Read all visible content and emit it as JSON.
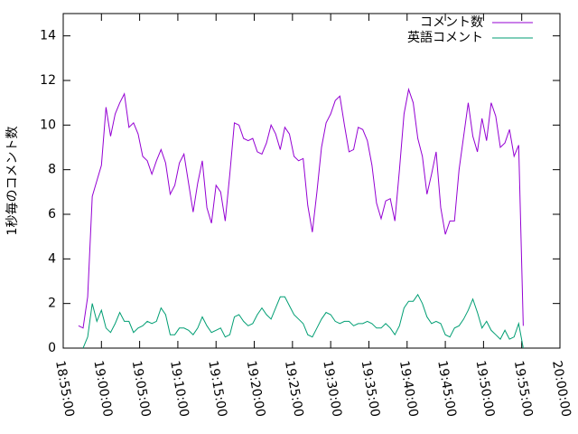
{
  "chart_data": {
    "type": "line",
    "ylabel": "1秒毎のコメント数",
    "xlim": [
      "18:55:00",
      "20:00:00"
    ],
    "xticks": [
      "18:55:00",
      "19:00:00",
      "19:05:00",
      "19:10:00",
      "19:15:00",
      "19:20:00",
      "19:25:00",
      "19:30:00",
      "19:35:00",
      "19:40:00",
      "19:45:00",
      "19:50:00",
      "19:55:00",
      "20:00:00"
    ],
    "ylim": [
      0,
      15
    ],
    "yticks": [
      0,
      2,
      4,
      6,
      8,
      10,
      12,
      14
    ],
    "legend": "top-right",
    "x": [
      "18:57:00",
      "18:57:36",
      "18:58:12",
      "18:58:48",
      "18:59:24",
      "19:00:00",
      "19:00:36",
      "19:01:12",
      "19:01:48",
      "19:02:24",
      "19:03:00",
      "19:03:36",
      "19:04:12",
      "19:04:48",
      "19:05:24",
      "19:06:00",
      "19:06:36",
      "19:07:12",
      "19:07:48",
      "19:08:24",
      "19:09:00",
      "19:09:36",
      "19:10:12",
      "19:10:48",
      "19:11:24",
      "19:12:00",
      "19:12:36",
      "19:13:12",
      "19:13:48",
      "19:14:24",
      "19:15:00",
      "19:15:36",
      "19:16:12",
      "19:16:48",
      "19:17:24",
      "19:18:00",
      "19:18:36",
      "19:19:12",
      "19:19:48",
      "19:20:24",
      "19:21:00",
      "19:21:36",
      "19:22:12",
      "19:22:48",
      "19:23:24",
      "19:24:00",
      "19:24:36",
      "19:25:12",
      "19:25:48",
      "19:26:24",
      "19:27:00",
      "19:27:36",
      "19:28:12",
      "19:28:48",
      "19:29:24",
      "19:30:00",
      "19:30:36",
      "19:31:12",
      "19:31:48",
      "19:32:24",
      "19:33:00",
      "19:33:36",
      "19:34:12",
      "19:34:48",
      "19:35:24",
      "19:36:00",
      "19:36:36",
      "19:37:12",
      "19:37:48",
      "19:38:24",
      "19:39:00",
      "19:39:36",
      "19:40:12",
      "19:40:48",
      "19:41:24",
      "19:42:00",
      "19:42:36",
      "19:43:12",
      "19:43:48",
      "19:44:24",
      "19:45:00",
      "19:45:36",
      "19:46:12",
      "19:46:48",
      "19:47:24",
      "19:48:00",
      "19:48:36",
      "19:49:12",
      "19:49:48",
      "19:50:24",
      "19:51:00",
      "19:51:36",
      "19:52:12",
      "19:52:48",
      "19:53:24",
      "19:54:00",
      "19:54:36",
      "19:55:12"
    ],
    "series": [
      {
        "name": "コメント数",
        "color": "#9400d3",
        "values": [
          1.0,
          0.9,
          2.3,
          6.8,
          7.5,
          8.2,
          10.8,
          9.5,
          10.5,
          11.0,
          11.4,
          9.9,
          10.1,
          9.6,
          8.6,
          8.4,
          7.8,
          8.4,
          8.9,
          8.3,
          6.9,
          7.3,
          8.3,
          8.7,
          7.4,
          6.1,
          7.4,
          8.4,
          6.3,
          5.6,
          7.3,
          7.0,
          5.7,
          7.8,
          10.1,
          10.0,
          9.4,
          9.3,
          9.4,
          8.8,
          8.7,
          9.2,
          10.0,
          9.6,
          8.9,
          9.9,
          9.6,
          8.6,
          8.4,
          8.5,
          6.4,
          5.2,
          7.0,
          9.0,
          10.1,
          10.5,
          11.1,
          11.3,
          10.0,
          8.8,
          8.9,
          9.9,
          9.8,
          9.3,
          8.2,
          6.5,
          5.8,
          6.6,
          6.7,
          5.7,
          8.0,
          10.5,
          11.6,
          11.0,
          9.4,
          8.6,
          6.9,
          7.8,
          8.8,
          6.3,
          5.1,
          5.7,
          5.7,
          8.0,
          9.5,
          11.0,
          9.5,
          8.8,
          10.3,
          9.3,
          11.0,
          10.4,
          9.0,
          9.2,
          9.8,
          8.6,
          9.1,
          1.0
        ]
      },
      {
        "name": "英語コメント",
        "color": "#009e73",
        "values": [
          null,
          0.0,
          0.5,
          2.0,
          1.2,
          1.7,
          0.9,
          0.7,
          1.1,
          1.6,
          1.2,
          1.2,
          0.7,
          0.9,
          1.0,
          1.2,
          1.1,
          1.2,
          1.8,
          1.5,
          0.6,
          0.6,
          0.9,
          0.9,
          0.8,
          0.6,
          0.9,
          1.4,
          1.0,
          0.7,
          0.8,
          0.9,
          0.5,
          0.6,
          1.4,
          1.5,
          1.2,
          1.0,
          1.1,
          1.5,
          1.8,
          1.5,
          1.3,
          1.8,
          2.3,
          2.3,
          1.9,
          1.5,
          1.3,
          1.1,
          0.6,
          0.5,
          0.9,
          1.3,
          1.6,
          1.5,
          1.2,
          1.1,
          1.2,
          1.2,
          1.0,
          1.1,
          1.1,
          1.2,
          1.1,
          0.9,
          0.9,
          1.1,
          0.9,
          0.6,
          1.0,
          1.8,
          2.1,
          2.1,
          2.4,
          2.0,
          1.4,
          1.1,
          1.2,
          1.1,
          0.6,
          0.5,
          0.9,
          1.0,
          1.3,
          1.7,
          2.2,
          1.6,
          0.9,
          1.2,
          0.8,
          0.6,
          0.4,
          0.8,
          0.4,
          0.5,
          1.1,
          0.0
        ]
      }
    ]
  }
}
